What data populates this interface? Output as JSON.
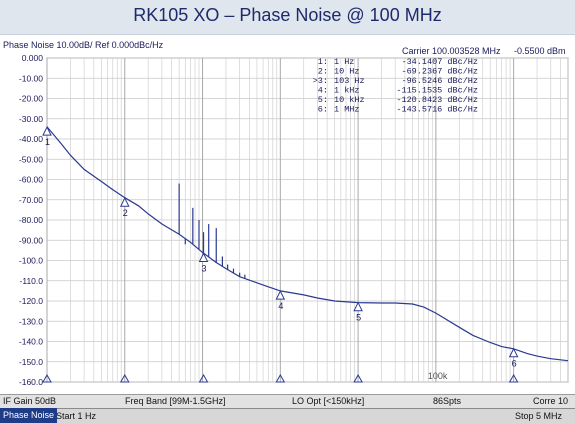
{
  "title": "RK105 XO – Phase Noise @ 100 MHz",
  "header": {
    "trace_info": "Phase Noise 10.00dB/ Ref 0.000dBc/Hz",
    "carrier_label": "Carrier 100.003528 MHz",
    "carrier_power": "-0.5500 dBm"
  },
  "chart_data": {
    "type": "line",
    "xscale": "log",
    "xlim": [
      1,
      5000000
    ],
    "ylim": [
      -160,
      0
    ],
    "yticks": [
      "0.000",
      "-10.00",
      "-20.00",
      "-30.00",
      "-40.00",
      "-50.00",
      "-60.00",
      "-70.00",
      "-80.00",
      "-90.00",
      "-100.0",
      "-110.0",
      "-120.0",
      "-130.0",
      "-140.0",
      "-150.0",
      "-160.0"
    ],
    "x_annotation": "100k",
    "grid": true,
    "markers": [
      {
        "num": "1",
        "label": "1:",
        "freq": "1 Hz",
        "value": "-34.1407 dBc/Hz",
        "x": 1,
        "y": -34.1407
      },
      {
        "num": "2",
        "label": "2:",
        "freq": "10 Hz",
        "value": "-69.2367 dBc/Hz",
        "x": 10,
        "y": -69.2367
      },
      {
        "num": "3",
        "label": ">3:",
        "freq": "103 Hz",
        "value": "-96.5246 dBc/Hz",
        "x": 103,
        "y": -96.5246
      },
      {
        "num": "4",
        "label": "4:",
        "freq": "1 kHz",
        "value": "-115.1535 dBc/Hz",
        "x": 1000,
        "y": -115.1535
      },
      {
        "num": "5",
        "label": "5:",
        "freq": "10 kHz",
        "value": "-120.8423 dBc/Hz",
        "x": 10000,
        "y": -120.8423
      },
      {
        "num": "6",
        "label": "6:",
        "freq": "1 MHz",
        "value": "-143.5716 dBc/Hz",
        "x": 1000000,
        "y": -143.5716
      }
    ],
    "series": [
      {
        "x": [
          1,
          1.5,
          2,
          3,
          5,
          7,
          10,
          15,
          20,
          30,
          50,
          70,
          100,
          150,
          200,
          300,
          500,
          700,
          1000,
          2000,
          3000,
          5000,
          10000,
          20000,
          30000,
          50000,
          70000,
          100000,
          200000,
          300000,
          500000,
          700000,
          1000000,
          1500000,
          2000000,
          3000000,
          5000000
        ],
        "y": [
          -34,
          -42,
          -48,
          -55,
          -61,
          -65,
          -69,
          -73,
          -77,
          -82,
          -87,
          -91,
          -96,
          -101,
          -104,
          -108,
          -111,
          -113,
          -115,
          -117,
          -118.5,
          -120,
          -120.8,
          -121,
          -121,
          -121.5,
          -123,
          -126,
          -133,
          -137,
          -140.5,
          -142.5,
          -143.6,
          -146,
          -147.2,
          -148.5,
          -149.5
        ]
      }
    ],
    "spurs": [
      {
        "x": 50,
        "y": -62
      },
      {
        "x": 60,
        "y": -92
      },
      {
        "x": 75,
        "y": -74
      },
      {
        "x": 90,
        "y": -80
      },
      {
        "x": 103,
        "y": -86
      },
      {
        "x": 120,
        "y": -82
      },
      {
        "x": 150,
        "y": -84
      },
      {
        "x": 180,
        "y": -98
      },
      {
        "x": 210,
        "y": -102
      },
      {
        "x": 250,
        "y": -104
      },
      {
        "x": 300,
        "y": -106
      },
      {
        "x": 350,
        "y": -107
      }
    ]
  },
  "status1": {
    "if_gain": "IF Gain 50dB",
    "freq_band": "Freq Band [99M-1.5GHz]",
    "lo_opt": "LO Opt [<150kHz]",
    "spts": "86Spts",
    "corre": "Corre 10"
  },
  "status2": {
    "tab": "Phase Noise",
    "start": "Start 1 Hz",
    "stop": "Stop 5 MHz"
  }
}
